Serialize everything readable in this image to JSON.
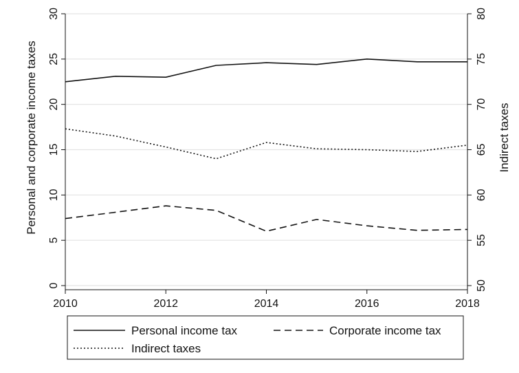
{
  "chart_data": {
    "type": "line",
    "x": [
      2010,
      2011,
      2012,
      2013,
      2014,
      2015,
      2016,
      2017,
      2018
    ],
    "x_ticks": [
      "2010",
      "2012",
      "2014",
      "2016",
      "2018"
    ],
    "xlim": [
      2010,
      2018
    ],
    "ylabel_left": "Personal and corporate income taxes",
    "ylim_left": [
      0,
      30
    ],
    "yticks_left": [
      "0",
      "5",
      "10",
      "15",
      "20",
      "25",
      "30"
    ],
    "ylabel_right": "Indirect taxes",
    "ylim_right": [
      50,
      80
    ],
    "yticks_right": [
      "50",
      "55",
      "60",
      "65",
      "70",
      "75",
      "80"
    ],
    "grid": true,
    "legend_position": "bottom",
    "series": [
      {
        "name": "Personal income tax",
        "axis": "left",
        "line_style": "solid",
        "values": [
          22.5,
          23.1,
          23.0,
          24.3,
          24.6,
          24.4,
          25.0,
          24.7,
          24.7
        ]
      },
      {
        "name": "Corporate income tax",
        "axis": "left",
        "line_style": "dashed",
        "values": [
          7.4,
          8.1,
          8.8,
          8.3,
          6.0,
          7.3,
          6.6,
          6.1,
          6.2
        ]
      },
      {
        "name": "Indirect taxes",
        "axis": "right",
        "line_style": "dotted",
        "values": [
          67.3,
          66.5,
          65.3,
          64.0,
          65.8,
          65.1,
          65.0,
          64.8,
          65.5
        ]
      }
    ],
    "colors": {
      "line": "#111111",
      "grid": "#e3e3e3",
      "frame": "#111111"
    }
  }
}
